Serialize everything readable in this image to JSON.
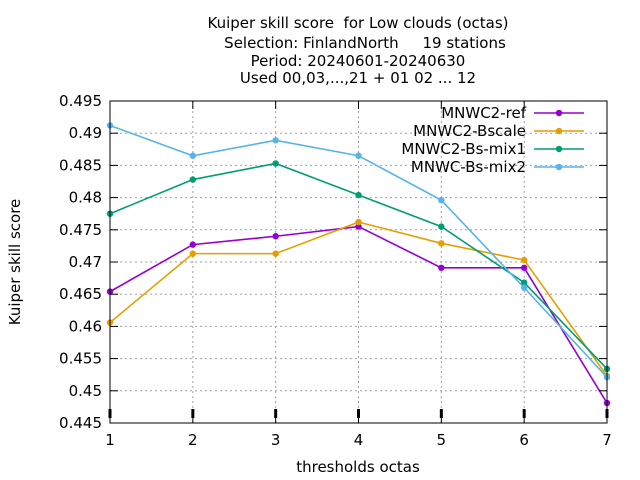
{
  "chart_data": {
    "type": "line",
    "title_lines": [
      "Kuiper skill score  for Low clouds (octas)",
      "Selection: FinlandNorth     19 stations",
      "Period: 20240601-20240630",
      "Used 00,03,...,21 + 01 02 ... 12"
    ],
    "xlabel": "thresholds octas",
    "ylabel": "Kuiper skill score",
    "x": [
      1,
      2,
      3,
      4,
      5,
      6,
      7
    ],
    "xlim": [
      1,
      7
    ],
    "ylim": [
      0.445,
      0.495
    ],
    "x_ticks": [
      "1",
      "2",
      "3",
      "4",
      "5",
      "6",
      "7"
    ],
    "y_ticks": [
      "0.445",
      "0.45",
      "0.455",
      "0.46",
      "0.465",
      "0.47",
      "0.475",
      "0.48",
      "0.485",
      "0.49",
      "0.495"
    ],
    "grid": true,
    "legend_position": "top-right",
    "series": [
      {
        "name": "MNWC2-ref",
        "color": "#9400d3",
        "values": [
          0.4654,
          0.4727,
          0.474,
          0.4755,
          0.4691,
          0.4691,
          0.4481
        ]
      },
      {
        "name": "MNWC2-Bscale",
        "color": "#e69f00",
        "values": [
          0.4606,
          0.4713,
          0.4713,
          0.4762,
          0.4729,
          0.4703,
          0.4523
        ]
      },
      {
        "name": "MNWC2-Bs-mix1",
        "color": "#009e73",
        "values": [
          0.4775,
          0.4828,
          0.4853,
          0.4804,
          0.4755,
          0.4668,
          0.4534
        ]
      },
      {
        "name": "MNWC-Bs-mix2",
        "color": "#56b4e9",
        "values": [
          0.4912,
          0.4865,
          0.4889,
          0.4865,
          0.4796,
          0.466,
          0.4521
        ]
      }
    ]
  }
}
